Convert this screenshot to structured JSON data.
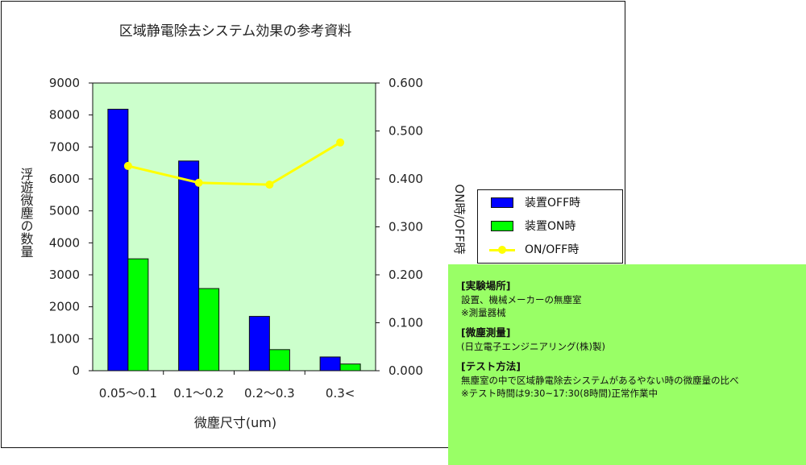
{
  "chart_data": {
    "type": "bar",
    "title": "区域静電除去システム効果の参考資料",
    "xlabel": "微塵尺寸(um)",
    "ylabel": "浮遊微塵の数量",
    "y2label": "ON時/OFF時",
    "categories": [
      "0.05〜0.1",
      "0.1〜0.2",
      "0.2〜0.3",
      "0.3<"
    ],
    "series": [
      {
        "name": "装置OFF時",
        "values": [
          8180,
          6560,
          1700,
          430
        ],
        "color": "#0000ff",
        "axis": "left",
        "type": "bar"
      },
      {
        "name": "装置ON時",
        "values": [
          3500,
          2570,
          660,
          210
        ],
        "color": "#00ff00",
        "axis": "left",
        "type": "bar"
      }
    ],
    "line_series": {
      "name": "ON/OFF時",
      "values": [
        0.427,
        0.392,
        0.388,
        0.476
      ],
      "color": "#ffff00",
      "axis": "right"
    },
    "ylim": [
      0,
      9000
    ],
    "y2lim": [
      0,
      0.6
    ],
    "yticks": [
      "0",
      "1000",
      "2000",
      "3000",
      "4000",
      "5000",
      "6000",
      "7000",
      "8000",
      "9000"
    ],
    "y2ticks": [
      "0.000",
      "0.100",
      "0.200",
      "0.300",
      "0.400",
      "0.500",
      "0.600"
    ],
    "grid": false,
    "plot_background": "#ccffcc",
    "legend_position": "right"
  },
  "note": {
    "sections": [
      {
        "heading": "[実験場所]",
        "lines": [
          "設置、機械メーカーの無塵室",
          "※測量器械"
        ]
      },
      {
        "heading": "[微塵測量]",
        "lines": [
          "(日立電子エンジニアリング(株)製)"
        ]
      },
      {
        "heading": "[テスト方法]",
        "lines": [
          "無塵室の中で区域静電除去システムがあるやない時の微塵量の比べ",
          "※テスト時間は9:30~17:30(8時間)正常作業中"
        ]
      }
    ]
  }
}
